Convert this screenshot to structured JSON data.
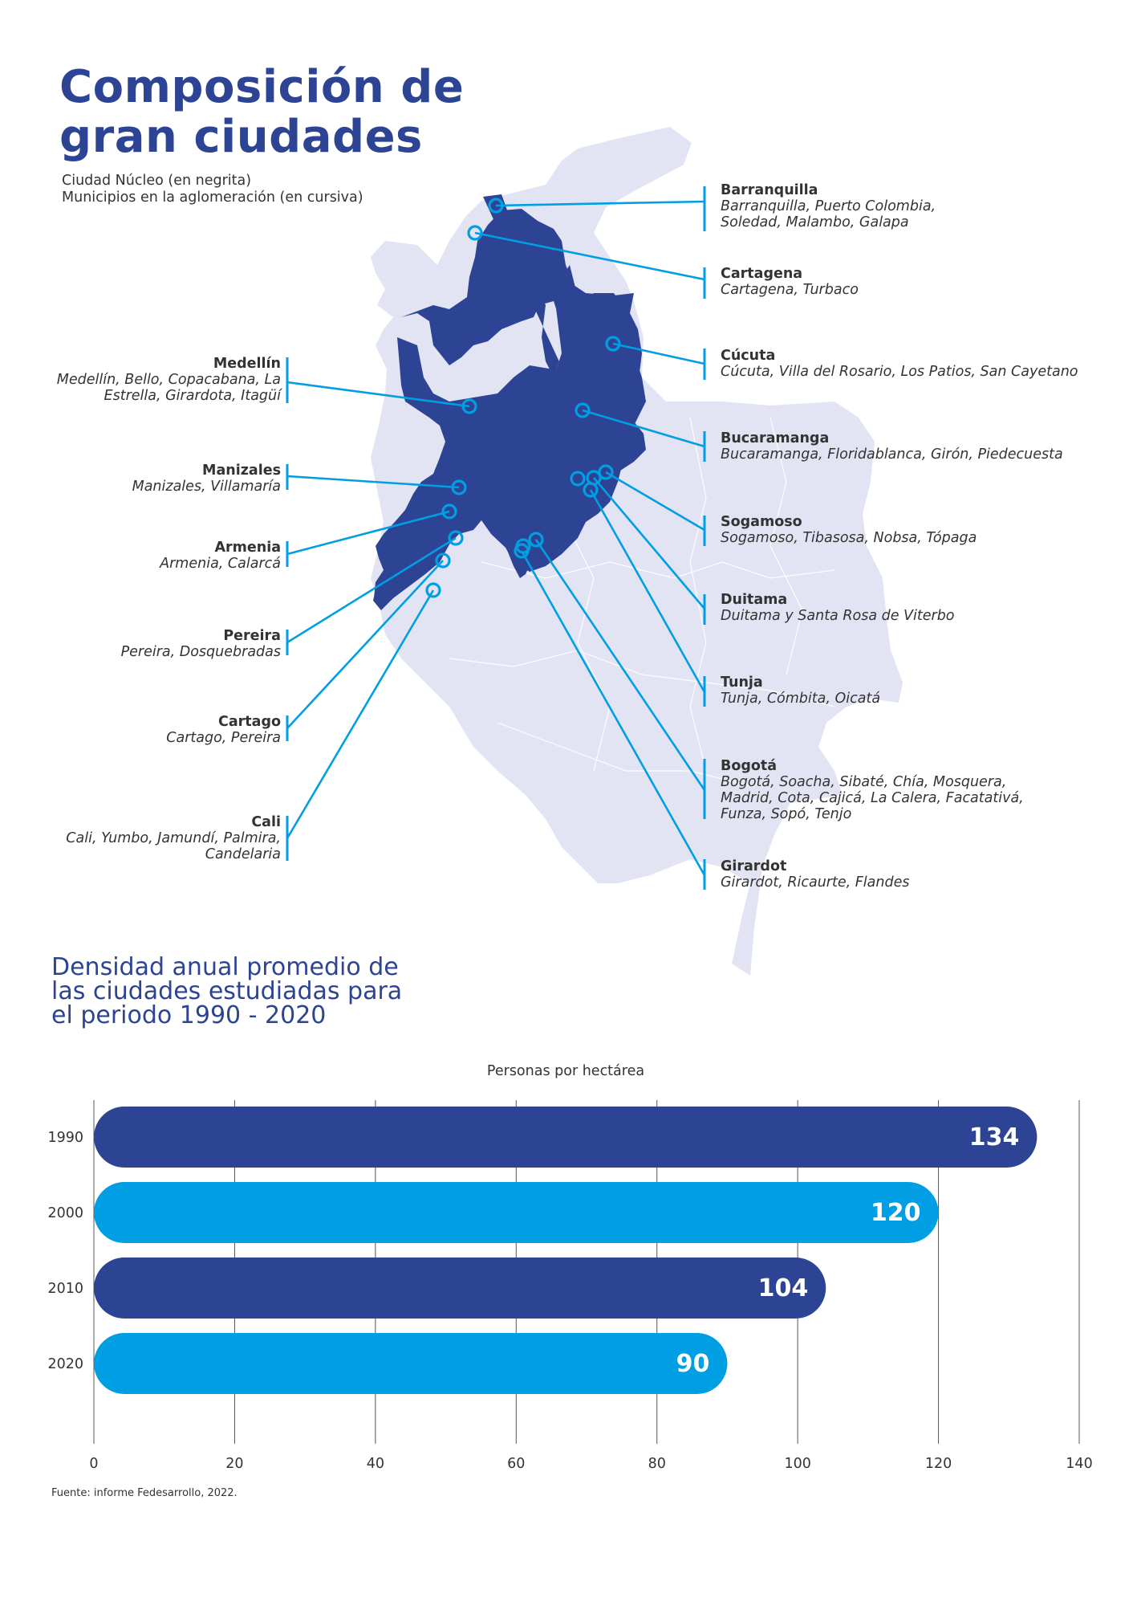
{
  "header": {
    "title_line1": "Composición de",
    "title_line2": "gran ciudades",
    "legend_line1": "Ciudad Núcleo (en negrita)",
    "legend_line2": "Municipios en la aglomeración (en cursiva)"
  },
  "colors": {
    "dark_blue": "#2c4493",
    "light_blue": "#009fe3",
    "map_fill": "#e3e4f3"
  },
  "cities_right": [
    {
      "name": "Barranquilla",
      "lines": [
        "Barranquilla, Puerto Colombia,",
        "Soledad, Malambo, Galapa"
      ]
    },
    {
      "name": "Cartagena",
      "lines": [
        "Cartagena, Turbaco"
      ]
    },
    {
      "name": "Cúcuta",
      "lines": [
        "Cúcuta, Villa del Rosario, Los Patios, San Cayetano"
      ]
    },
    {
      "name": "Bucaramanga",
      "lines": [
        "Bucaramanga, Floridablanca, Girón, Piedecuesta"
      ]
    },
    {
      "name": "Sogamoso",
      "lines": [
        "Sogamoso, Tibasosa, Nobsa, Tópaga"
      ]
    },
    {
      "name": "Duitama",
      "lines": [
        "Duitama y Santa Rosa de Viterbo"
      ]
    },
    {
      "name": "Tunja",
      "lines": [
        "Tunja, Cómbita, Oicatá"
      ]
    },
    {
      "name": "Bogotá",
      "lines": [
        "Bogotá, Soacha, Sibaté, Chía, Mosquera,",
        "Madrid, Cota, Cajicá, La Calera, Facatativá,",
        "Funza, Sopó, Tenjo"
      ]
    },
    {
      "name": "Girardot",
      "lines": [
        "Girardot, Ricaurte, Flandes"
      ]
    }
  ],
  "cities_left": [
    {
      "name": "Medellín",
      "lines": [
        "Medellín, Bello, Copacabana, La",
        "Estrella, Girardota, Itagüí"
      ]
    },
    {
      "name": "Manizales",
      "lines": [
        "Manizales, Villamaría"
      ]
    },
    {
      "name": "Armenia",
      "lines": [
        "Armenia, Calarcá"
      ]
    },
    {
      "name": "Pereira",
      "lines": [
        "Pereira, Dosquebradas"
      ]
    },
    {
      "name": "Cartago",
      "lines": [
        "Cartago, Pereira"
      ]
    },
    {
      "name": "Cali",
      "lines": [
        "Cali, Yumbo, Jamundí, Palmira,",
        "Candelaria"
      ]
    }
  ],
  "chart_section": {
    "title_line1": "Densidad anual promedio de",
    "title_line2": "las ciudades estudiadas para",
    "title_line3": "el periodo 1990 - 2020"
  },
  "chart_data": {
    "type": "bar",
    "orientation": "horizontal",
    "title": "Personas por hectárea",
    "categories": [
      "1990",
      "2000",
      "2010",
      "2020"
    ],
    "values": [
      134,
      120,
      104,
      90
    ],
    "bar_colors": [
      "#2c4493",
      "#009fe3",
      "#2c4493",
      "#009fe3"
    ],
    "xlim": [
      0,
      140
    ],
    "xticks": [
      0,
      20,
      40,
      60,
      80,
      100,
      120,
      140
    ],
    "grid": true
  },
  "source": "Fuente: informe Fedesarrollo, 2022."
}
